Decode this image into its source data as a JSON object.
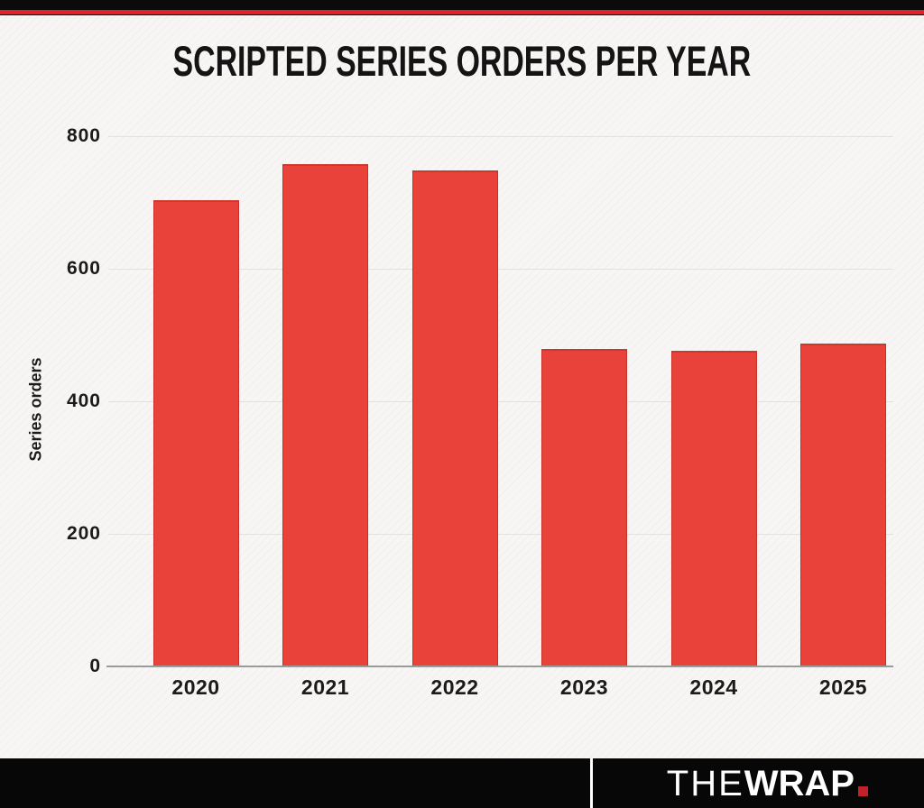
{
  "page": {
    "background_color": "#f7f6f4",
    "top_bar_color": "#0b0b0b",
    "top_stripe_color": "#e1222a"
  },
  "chart_data": {
    "type": "bar",
    "title": "SCRIPTED SERIES ORDERS PER YEAR",
    "categories": [
      "2020",
      "2021",
      "2022",
      "2023",
      "2024",
      "2025"
    ],
    "values": [
      703,
      758,
      748,
      479,
      476,
      487
    ],
    "xlabel": "",
    "ylabel": "Series orders",
    "yticks": [
      0,
      200,
      400,
      600,
      800
    ],
    "ylim": [
      0,
      800
    ],
    "bar_color": "#e8423a",
    "grid": true,
    "legend": false
  },
  "footer": {
    "bar_color": "#070707",
    "logo": {
      "the": "THE",
      "wrap": "WRAP",
      "dot_color": "#c32129"
    }
  }
}
